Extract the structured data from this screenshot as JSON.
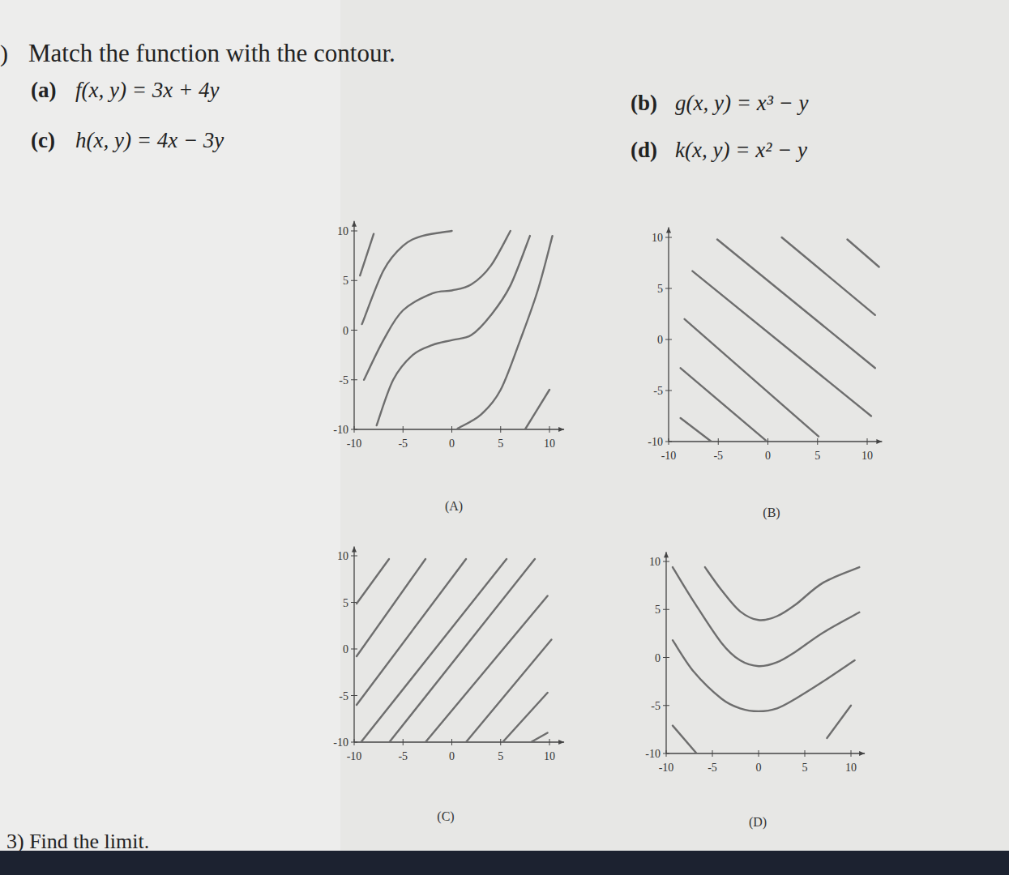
{
  "header": {
    "prefix": ")",
    "instruction": "Match the function with the contour.",
    "functions": [
      {
        "label": "(a)",
        "expr": "f(x, y) = 3x + 4y"
      },
      {
        "label": "(b)",
        "expr": "g(x, y) = x³ − y"
      },
      {
        "label": "(c)",
        "expr": "h(x, y) = 4x − 3y"
      },
      {
        "label": "(d)",
        "expr": "k(x, y) = x² − y"
      }
    ],
    "footer": "3) Find the limit."
  },
  "chart_data": [
    {
      "type": "line",
      "title": "(A)",
      "color": "#6e6e6e",
      "xlim": [
        -10,
        11.5
      ],
      "ylim": [
        -10,
        11
      ],
      "xticks": [
        -10,
        -5,
        0,
        5,
        10
      ],
      "yticks": [
        -10,
        -5,
        0,
        5,
        10
      ],
      "series": [
        {
          "x": [
            -9.4,
            -8
          ],
          "values": [
            5.5,
            9.7
          ]
        },
        {
          "x": [
            -9.2,
            -7,
            -5,
            -3,
            0
          ],
          "values": [
            0.6,
            6,
            8.5,
            9.5,
            10
          ]
        },
        {
          "x": [
            -9,
            -7,
            -5,
            -2,
            0,
            2,
            4,
            6
          ],
          "values": [
            -5,
            -1,
            2,
            3.7,
            4,
            4.6,
            6.5,
            10
          ]
        },
        {
          "x": [
            -7.7,
            -6,
            -4,
            -2,
            0,
            2,
            4,
            6,
            8
          ],
          "values": [
            -9.6,
            -5,
            -2.5,
            -1.5,
            -1,
            -0.5,
            1.5,
            4.5,
            9.5
          ]
        },
        {
          "x": [
            0.6,
            3,
            5,
            7,
            8.8,
            10.3
          ],
          "values": [
            -9.9,
            -8.5,
            -6,
            -1,
            4,
            9.5
          ]
        },
        {
          "x": [
            7.5,
            10
          ],
          "values": [
            -10,
            -6
          ]
        }
      ]
    },
    {
      "type": "line",
      "title": "(B)",
      "color": "#6e6e6e",
      "xlim": [
        -10,
        11.5
      ],
      "ylim": [
        -10,
        11
      ],
      "xticks": [
        -10,
        -5,
        0,
        5,
        10
      ],
      "yticks": [
        -10,
        -5,
        0,
        5,
        10
      ],
      "series": [
        {
          "x": [
            -8.8,
            -5.7
          ],
          "values": [
            -7.7,
            -10
          ]
        },
        {
          "x": [
            -8.8,
            -0.2
          ],
          "values": [
            -2.8,
            -9.9
          ]
        },
        {
          "x": [
            -8.4,
            5.1
          ],
          "values": [
            2,
            -9.5
          ]
        },
        {
          "x": [
            -7.6,
            10.4
          ],
          "values": [
            6.7,
            -7.5
          ]
        },
        {
          "x": [
            -5.1,
            10.8
          ],
          "values": [
            9.8,
            -2.8
          ]
        },
        {
          "x": [
            1.4,
            10.8
          ],
          "values": [
            10,
            2.4
          ]
        },
        {
          "x": [
            8,
            11.2
          ],
          "values": [
            9.8,
            7.1
          ]
        }
      ]
    },
    {
      "type": "line",
      "title": "(C)",
      "color": "#6e6e6e",
      "xlim": [
        -10,
        11.5
      ],
      "ylim": [
        -10,
        11
      ],
      "xticks": [
        -10,
        -5,
        0,
        5,
        10
      ],
      "yticks": [
        -10,
        -5,
        0,
        5,
        10
      ],
      "series": [
        {
          "x": [
            -9.75,
            -6.43
          ],
          "values": [
            4.87,
            9.65
          ]
        },
        {
          "x": [
            -9.75,
            -2.7
          ],
          "values": [
            -0.78,
            9.65
          ]
        },
        {
          "x": [
            -9.75,
            1.45
          ],
          "values": [
            -6,
            9.65
          ]
        },
        {
          "x": [
            -9.3,
            5.6
          ],
          "values": [
            -10,
            9.65
          ]
        },
        {
          "x": [
            -6.4,
            8.5
          ],
          "values": [
            -10,
            9.65
          ]
        },
        {
          "x": [
            -2.7,
            9.8
          ],
          "values": [
            -10,
            5.7
          ]
        },
        {
          "x": [
            1.45,
            10.2
          ],
          "values": [
            -10,
            1
          ]
        },
        {
          "x": [
            5.2,
            9.8
          ],
          "values": [
            -10,
            -4.7
          ]
        },
        {
          "x": [
            8.1,
            9.8
          ],
          "values": [
            -10,
            -9
          ]
        }
      ]
    },
    {
      "type": "line",
      "title": "(D)",
      "color": "#6e6e6e",
      "xlim": [
        -10,
        11.5
      ],
      "ylim": [
        -10,
        11
      ],
      "xticks": [
        -10,
        -5,
        0,
        5,
        10
      ],
      "yticks": [
        -10,
        -5,
        0,
        5,
        10
      ],
      "series": [
        {
          "x": [
            -5.8,
            -4,
            -2,
            0,
            2,
            4,
            7,
            10.9
          ],
          "values": [
            9.4,
            7,
            4.8,
            3.9,
            4.3,
            5.5,
            7.8,
            9.4
          ]
        },
        {
          "x": [
            -9.3,
            -7,
            -4,
            -2,
            0,
            2,
            4,
            7,
            10.9
          ],
          "values": [
            9.4,
            5.8,
            1.5,
            -0.3,
            -0.9,
            -0.5,
            0.6,
            2.6,
            4.7
          ]
        },
        {
          "x": [
            -9.3,
            -7,
            -4,
            -2,
            0,
            2,
            4,
            7,
            10.4
          ],
          "values": [
            1.8,
            -1.5,
            -4.3,
            -5.3,
            -5.6,
            -5.3,
            -4.3,
            -2.5,
            -0.3
          ]
        },
        {
          "x": [
            -9.3,
            -6.7
          ],
          "values": [
            -7.1,
            -10
          ]
        },
        {
          "x": [
            7.4,
            10
          ],
          "values": [
            -8.4,
            -5
          ]
        }
      ]
    }
  ]
}
